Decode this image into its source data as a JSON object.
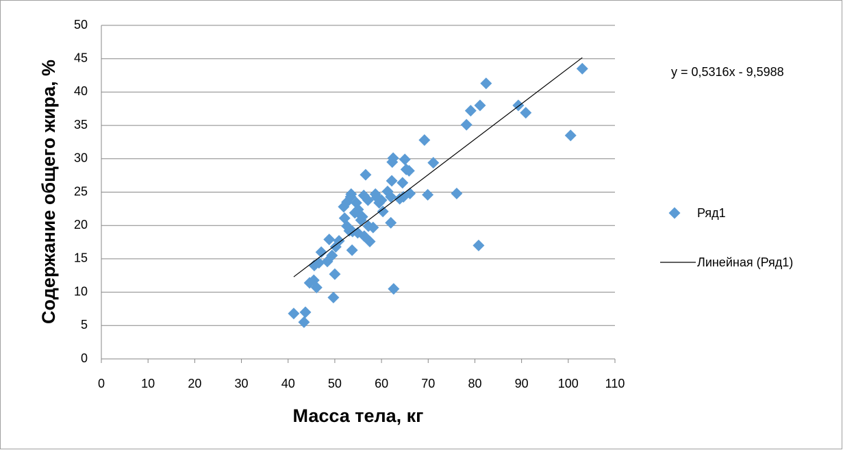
{
  "chart_data": {
    "type": "scatter",
    "x_label": "Масса тела, кг",
    "y_label": "Содержание общего жира, %",
    "xlim": [
      0,
      110
    ],
    "xticks": [
      0,
      10,
      20,
      30,
      40,
      50,
      60,
      70,
      80,
      90,
      100,
      110
    ],
    "ylim": [
      0,
      50
    ],
    "yticks": [
      0,
      5,
      10,
      15,
      20,
      25,
      30,
      35,
      40,
      45,
      50
    ],
    "grid": true,
    "legend": "right",
    "series": [
      {
        "name": "Ряд1",
        "color": "#5b9bd5",
        "x": [
          41.2,
          43.7,
          43.4,
          44.6,
          45.5,
          46.1,
          45.6,
          47.1,
          46.6,
          48.4,
          48.8,
          49.7,
          50.0,
          49.4,
          50.2,
          50.9,
          52.1,
          51.9,
          52.6,
          53.4,
          53.5,
          52.6,
          53.1,
          53.8,
          53.7,
          54.3,
          54.6,
          55.0,
          55.6,
          55.9,
          54.9,
          56.3,
          56.6,
          56.2,
          57.1,
          57.5,
          57.2,
          58.2,
          58.7,
          59.0,
          59.5,
          60.3,
          60.0,
          61.3,
          62.0,
          62.2,
          62.0,
          62.3,
          62.5,
          62.6,
          63.9,
          64.5,
          64.7,
          65.0,
          65.3,
          65.9,
          66.1,
          69.2,
          69.9,
          71.1,
          76.1,
          78.2,
          79.1,
          80.8,
          81.1,
          82.4,
          89.3,
          90.9,
          100.5,
          103.0
        ],
        "values": [
          6.8,
          7.0,
          5.5,
          11.4,
          11.8,
          10.7,
          14.0,
          16.0,
          14.4,
          14.6,
          17.9,
          9.2,
          12.7,
          15.5,
          16.8,
          17.7,
          21.1,
          22.8,
          23.5,
          24.3,
          24.7,
          19.9,
          19.2,
          19.1,
          16.3,
          21.9,
          23.4,
          22.4,
          20.8,
          21.3,
          18.9,
          18.4,
          27.6,
          24.5,
          23.8,
          17.6,
          19.9,
          19.7,
          24.7,
          24.2,
          23.4,
          22.1,
          23.8,
          25.1,
          24.3,
          26.7,
          20.4,
          29.5,
          30.1,
          10.5,
          24.0,
          26.4,
          24.3,
          29.9,
          28.4,
          28.2,
          24.8,
          32.8,
          24.6,
          29.4,
          24.8,
          35.1,
          37.2,
          17.0,
          38.0,
          41.3,
          38.0,
          36.9,
          33.5,
          43.5
        ]
      }
    ],
    "trendline": {
      "name": "Линейная (Ряд1)",
      "label": "y = 0,5316x - 9,5988",
      "slope": 0.5316,
      "intercept": -9.5988,
      "color": "#000000"
    }
  }
}
